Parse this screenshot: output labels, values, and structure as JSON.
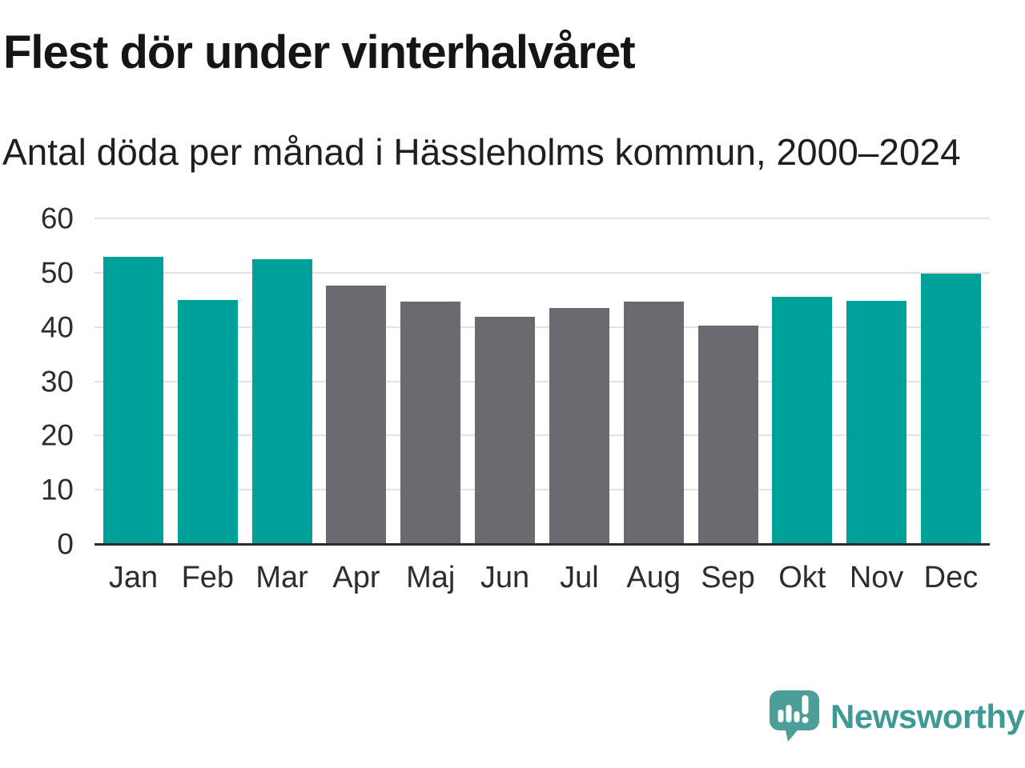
{
  "page": {
    "title": "Flest dör under vinterhalvåret",
    "subtitle": "Antal döda per månad i Hässleholms kommun, 2000–2024"
  },
  "chart_data": {
    "type": "bar",
    "title": "Flest dör under vinterhalvåret",
    "subtitle": "Antal döda per månad i Hässleholms kommun, 2000–2024",
    "categories": [
      "Jan",
      "Feb",
      "Mar",
      "Apr",
      "Maj",
      "Jun",
      "Jul",
      "Aug",
      "Sep",
      "Okt",
      "Nov",
      "Dec"
    ],
    "values": [
      52.9,
      44.9,
      52.5,
      47.6,
      44.7,
      41.9,
      43.5,
      44.6,
      40.2,
      45.6,
      44.8,
      49.9
    ],
    "bar_groups": [
      "winter",
      "winter",
      "winter",
      "summer",
      "summer",
      "summer",
      "summer",
      "summer",
      "summer",
      "winter",
      "winter",
      "winter"
    ],
    "group_colors": {
      "winter": "#00a09a",
      "summer": "#6a6a70"
    },
    "ylim": [
      0,
      60
    ],
    "yticks": [
      0,
      10,
      20,
      30,
      40,
      50,
      60
    ],
    "grid": true,
    "legend": "none",
    "xlabel": "",
    "ylabel": ""
  },
  "footer": {
    "brand": "Newsworthy"
  },
  "colors": {
    "background": "#ffffff",
    "title_text": "#151515",
    "axis_labels": "#2d2d2d",
    "gridline": "#e2e2e2",
    "axis_line": "#2b2b2b",
    "logo_icon": "#4c9e99",
    "logo_text": "#3e9a94"
  }
}
